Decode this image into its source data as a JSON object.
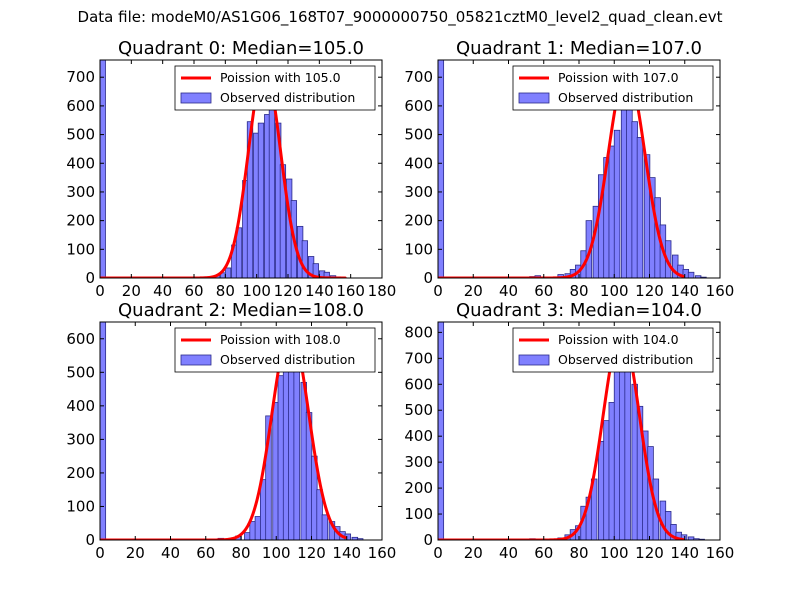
{
  "figure": {
    "suptitle": "Data file: modeM0/AS1G06_168T07_9000000750_05821cztM0_level2_quad_clean.evt"
  },
  "colors": {
    "bar_fill": "#8080ff",
    "bar_edge": "#2a2a8a",
    "poisson_line": "#ff0000"
  },
  "chart_data": [
    {
      "type": "bar",
      "title": "Quadrant 0: Median=105.0",
      "xlim": [
        0,
        180
      ],
      "ylim": [
        0,
        760
      ],
      "xticks": [
        0,
        20,
        40,
        60,
        80,
        100,
        120,
        140,
        160,
        180
      ],
      "yticks": [
        0,
        100,
        200,
        300,
        400,
        500,
        600,
        700
      ],
      "bin_width": 3.5,
      "bins": [
        [
          0,
          760
        ],
        [
          52,
          3
        ],
        [
          59,
          2
        ],
        [
          66,
          4
        ],
        [
          73,
          8
        ],
        [
          77,
          18
        ],
        [
          80,
          35
        ],
        [
          84,
          115
        ],
        [
          87,
          175
        ],
        [
          91,
          340
        ],
        [
          94,
          545
        ],
        [
          98,
          505
        ],
        [
          101,
          540
        ],
        [
          105,
          570
        ],
        [
          108,
          610
        ],
        [
          112,
          540
        ],
        [
          115,
          395
        ],
        [
          119,
          345
        ],
        [
          122,
          270
        ],
        [
          126,
          180
        ],
        [
          129,
          130
        ],
        [
          133,
          75
        ],
        [
          136,
          50
        ],
        [
          140,
          25
        ],
        [
          143,
          20
        ],
        [
          147,
          8
        ],
        [
          150,
          4
        ]
      ],
      "poisson_mean": 105.0,
      "poisson_peak": 730,
      "legend": [
        "Poission with 105.0",
        "Observed distribution"
      ]
    },
    {
      "type": "bar",
      "title": "Quadrant 1: Median=107.0",
      "xlim": [
        0,
        160
      ],
      "ylim": [
        0,
        760
      ],
      "xticks": [
        0,
        20,
        40,
        60,
        80,
        100,
        120,
        140,
        160
      ],
      "yticks": [
        0,
        100,
        200,
        300,
        400,
        500,
        600,
        700
      ],
      "bin_width": 3.2,
      "bins": [
        [
          0,
          760
        ],
        [
          52,
          5
        ],
        [
          55,
          8
        ],
        [
          62,
          3
        ],
        [
          68,
          12
        ],
        [
          72,
          15
        ],
        [
          75,
          30
        ],
        [
          78,
          45
        ],
        [
          81,
          95
        ],
        [
          84,
          200
        ],
        [
          88,
          250
        ],
        [
          91,
          360
        ],
        [
          94,
          420
        ],
        [
          97,
          460
        ],
        [
          100,
          515
        ],
        [
          104,
          600
        ],
        [
          107,
          660
        ],
        [
          110,
          545
        ],
        [
          113,
          490
        ],
        [
          117,
          430
        ],
        [
          120,
          350
        ],
        [
          123,
          280
        ],
        [
          126,
          185
        ],
        [
          129,
          130
        ],
        [
          133,
          80
        ],
        [
          136,
          45
        ],
        [
          139,
          30
        ],
        [
          142,
          20
        ],
        [
          146,
          8
        ],
        [
          149,
          3
        ]
      ],
      "poisson_mean": 107.0,
      "poisson_peak": 720,
      "legend": [
        "Poission with 107.0",
        "Observed distribution"
      ]
    },
    {
      "type": "bar",
      "title": "Quadrant 2: Median=108.0",
      "xlim": [
        0,
        160
      ],
      "ylim": [
        0,
        650
      ],
      "xticks": [
        0,
        20,
        40,
        60,
        80,
        100,
        120,
        140,
        160
      ],
      "yticks": [
        0,
        100,
        200,
        300,
        400,
        500,
        600
      ],
      "bin_width": 3.2,
      "bins": [
        [
          0,
          650
        ],
        [
          67,
          5
        ],
        [
          72,
          4
        ],
        [
          77,
          12
        ],
        [
          82,
          22
        ],
        [
          85,
          55
        ],
        [
          88,
          70
        ],
        [
          91,
          180
        ],
        [
          94,
          370
        ],
        [
          98,
          410
        ],
        [
          101,
          490
        ],
        [
          104,
          540
        ],
        [
          107,
          590
        ],
        [
          110,
          570
        ],
        [
          114,
          470
        ],
        [
          117,
          380
        ],
        [
          120,
          250
        ],
        [
          123,
          150
        ],
        [
          126,
          75
        ],
        [
          130,
          55
        ],
        [
          133,
          40
        ],
        [
          136,
          25
        ],
        [
          139,
          18
        ],
        [
          143,
          8
        ],
        [
          146,
          4
        ]
      ],
      "poisson_mean": 108.0,
      "poisson_peak": 625,
      "legend": [
        "Poission with 108.0",
        "Observed distribution"
      ]
    },
    {
      "type": "bar",
      "title": "Quadrant 3: Median=104.0",
      "xlim": [
        0,
        160
      ],
      "ylim": [
        0,
        840
      ],
      "xticks": [
        0,
        20,
        40,
        60,
        80,
        100,
        120,
        140,
        160
      ],
      "yticks": [
        0,
        100,
        200,
        300,
        400,
        500,
        600,
        700,
        800
      ],
      "bin_width": 3.2,
      "bins": [
        [
          0,
          840
        ],
        [
          52,
          5
        ],
        [
          56,
          3
        ],
        [
          63,
          4
        ],
        [
          68,
          8
        ],
        [
          72,
          20
        ],
        [
          75,
          40
        ],
        [
          78,
          55
        ],
        [
          81,
          130
        ],
        [
          84,
          165
        ],
        [
          87,
          235
        ],
        [
          91,
          380
        ],
        [
          94,
          460
        ],
        [
          97,
          530
        ],
        [
          100,
          650
        ],
        [
          103,
          790
        ],
        [
          106,
          720
        ],
        [
          110,
          600
        ],
        [
          113,
          515
        ],
        [
          116,
          420
        ],
        [
          119,
          360
        ],
        [
          122,
          235
        ],
        [
          126,
          150
        ],
        [
          129,
          110
        ],
        [
          132,
          60
        ],
        [
          135,
          30
        ],
        [
          138,
          20
        ],
        [
          142,
          12
        ],
        [
          145,
          5
        ],
        [
          148,
          3
        ]
      ],
      "poisson_mean": 104.0,
      "poisson_peak": 800,
      "legend": [
        "Poission with 104.0",
        "Observed distribution"
      ]
    }
  ]
}
